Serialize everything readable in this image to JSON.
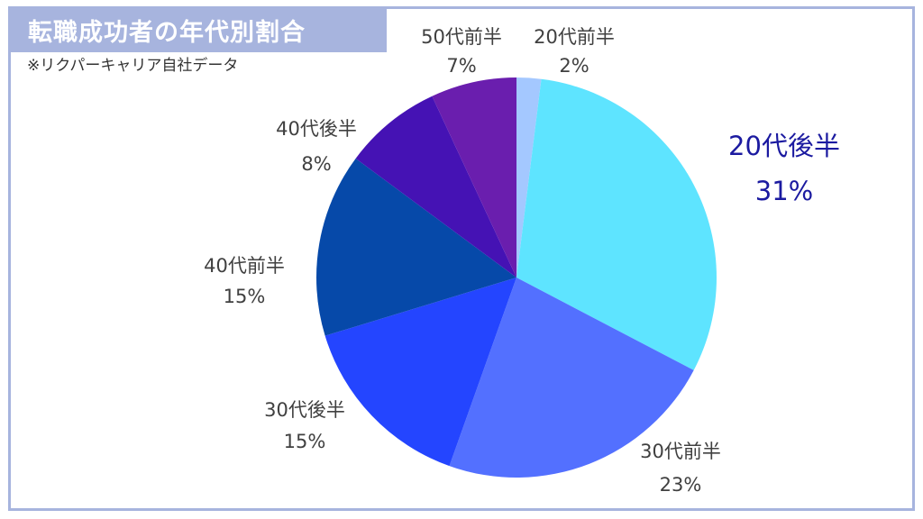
{
  "header": {
    "title": "転職成功者の年代別割合",
    "subtitle": "※リクパーキャリア自社データ"
  },
  "chart_data": {
    "type": "pie",
    "title": "転職成功者の年代別割合",
    "unit": "%",
    "slices": [
      {
        "label": "20代前半",
        "value": 2,
        "value_label": "2%",
        "color": "#a4c8ff"
      },
      {
        "label": "20代後半",
        "value": 31,
        "value_label": "31%",
        "color": "#5ee4ff",
        "highlight": true,
        "label_color": "#1b1aa0"
      },
      {
        "label": "30代前半",
        "value": 23,
        "value_label": "23%",
        "color": "#5370ff"
      },
      {
        "label": "30代後半",
        "value": 15,
        "value_label": "15%",
        "color": "#2445ff"
      },
      {
        "label": "40代前半",
        "value": 15,
        "value_label": "15%",
        "color": "#0649a9"
      },
      {
        "label": "40代後半",
        "value": 8,
        "value_label": "8%",
        "color": "#4512b4"
      },
      {
        "label": "50代前半",
        "value": 7,
        "value_label": "7%",
        "color": "#6a1eae"
      }
    ],
    "start_angle": "12 o'clock",
    "direction": "clockwise",
    "legend": "none"
  }
}
